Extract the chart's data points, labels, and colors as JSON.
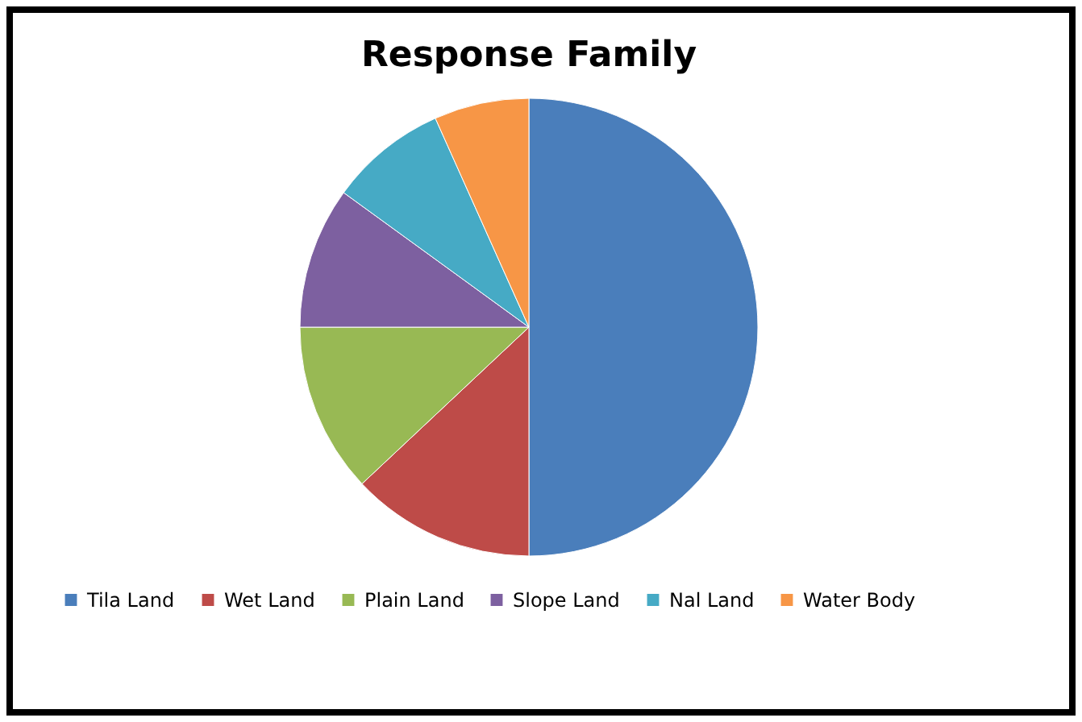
{
  "chart_data": {
    "type": "pie",
    "title": "Response Family",
    "categories": [
      "Tila Land",
      "Wet Land",
      "Plain Land",
      "Slope Land",
      "Nal Land",
      "Water Body"
    ],
    "values": [
      50,
      13,
      12,
      10,
      8.3,
      6.7
    ],
    "colors": [
      "#4a7ebb",
      "#be4b48",
      "#98b954",
      "#7d60a0",
      "#46aac5",
      "#f79646"
    ],
    "legend": "bottom"
  }
}
